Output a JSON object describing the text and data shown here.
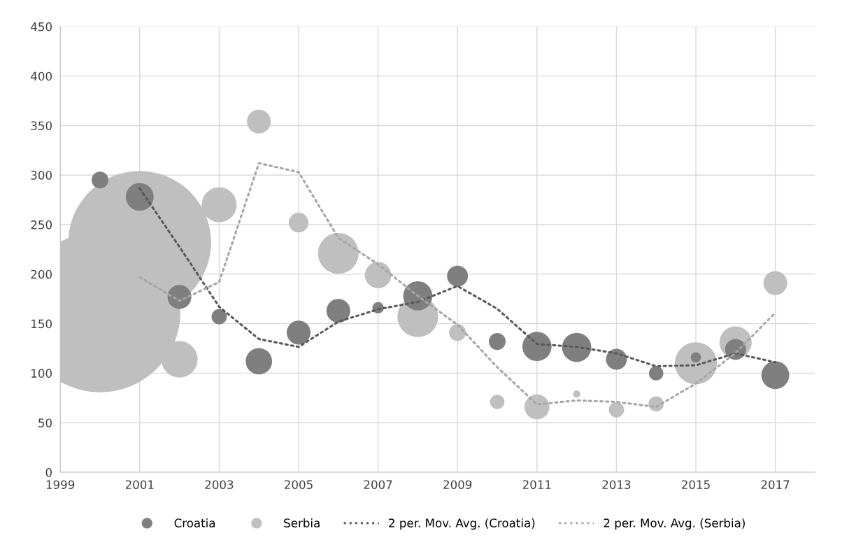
{
  "chart_data": {
    "type": "bubble",
    "x": [
      2000,
      2001,
      2002,
      2003,
      2004,
      2005,
      2006,
      2007,
      2008,
      2009,
      2010,
      2011,
      2012,
      2013,
      2014,
      2015,
      2016,
      2017
    ],
    "series": [
      {
        "name": "Croatia",
        "color": "#7f7f7f",
        "values": [
          295,
          278,
          177,
          157,
          112,
          141,
          163,
          166,
          178,
          198,
          132,
          127,
          126,
          114,
          100,
          116,
          124,
          98
        ],
        "sizes": [
          0.011,
          0.03,
          0.022,
          0.009,
          0.027,
          0.022,
          0.022,
          0.005,
          0.033,
          0.017,
          0.011,
          0.033,
          0.033,
          0.017,
          0.008,
          0.004,
          0.017,
          0.03
        ]
      },
      {
        "name": "Serbia",
        "color": "#bfbfbf",
        "values": [
          162,
          232,
          114,
          270,
          354,
          252,
          221,
          199,
          157,
          141,
          71,
          66,
          79,
          63,
          69,
          110,
          131,
          191
        ],
        "sizes": [
          1,
          0.787,
          0.051,
          0.047,
          0.022,
          0.015,
          0.064,
          0.027,
          0.064,
          0.011,
          0.008,
          0.024,
          0.002,
          0.009,
          0.009,
          0.068,
          0.04,
          0.022
        ]
      },
      {
        "name": "2 per. Mov. Avg. (Croatia)",
        "type": "line",
        "line_style": "dotted",
        "color": "#595959",
        "x": [
          2001,
          2002,
          2003,
          2004,
          2005,
          2006,
          2007,
          2008,
          2009,
          2010,
          2011,
          2012,
          2013,
          2014,
          2015,
          2016,
          2017
        ],
        "values": [
          286.5,
          227.5,
          167,
          134.5,
          126.5,
          152,
          164.5,
          172,
          188,
          165,
          129.5,
          126.5,
          120,
          107,
          108,
          120,
          111
        ]
      },
      {
        "name": "2 per. Mov. Avg. (Serbia)",
        "type": "line",
        "line_style": "dotted",
        "color": "#a6a6a6",
        "x": [
          2001,
          2002,
          2003,
          2004,
          2005,
          2006,
          2007,
          2008,
          2009,
          2010,
          2011,
          2012,
          2013,
          2014,
          2015,
          2016,
          2017
        ],
        "values": [
          197,
          173,
          192,
          312,
          303,
          236.5,
          210,
          178,
          149,
          106,
          68.5,
          72.5,
          71,
          66,
          89.5,
          120.5,
          161
        ]
      }
    ],
    "xlim": [
      1999,
      2018
    ],
    "xticks": [
      1999,
      2001,
      2003,
      2005,
      2007,
      2009,
      2011,
      2013,
      2015,
      2017
    ],
    "ylim": [
      0,
      450
    ],
    "yticks": [
      0,
      50,
      100,
      150,
      200,
      250,
      300,
      350,
      400,
      450
    ],
    "grid": true,
    "legend": "bottom"
  }
}
